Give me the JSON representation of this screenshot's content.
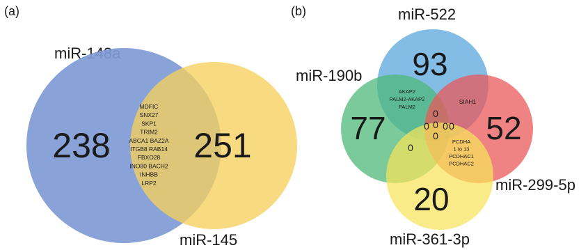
{
  "panel_a": {
    "label": "(a)",
    "set_left": "miR-148a",
    "set_right": "miR-145",
    "count_left": "238",
    "count_right": "251",
    "overlap_genes": [
      "MDFIC",
      "SNX27",
      "SKP1",
      "TRIM2",
      "ABCA1 BAZ2A",
      "ITGB8 RAB14",
      "FBXO28",
      "INO80 BACH2",
      "INHBB",
      "LRP2"
    ],
    "colors": {
      "left": "#7f9bd6",
      "right": "#f6cf5e",
      "overlap": "#c0ae70"
    }
  },
  "panel_b": {
    "label": "(b)",
    "set_top": "miR-522",
    "set_left": "miR-190b",
    "set_right": "miR-299-5p",
    "set_bottom": "miR-361-3p",
    "count_top": "93",
    "count_left": "77",
    "count_right": "52",
    "count_bottom": "20",
    "left_top_genes": [
      "AKAP2",
      "PALM2-AKAP2",
      "PALM2"
    ],
    "top_right_gene": "SIAH1",
    "right_bottom_genes": [
      "PCDHA",
      "1 to 13",
      "PCDHAC1",
      "PCDHAC2"
    ],
    "left_bottom_count": "0",
    "center_zeros": [
      "0",
      "0",
      "0",
      "0",
      "0",
      "0"
    ],
    "colors": {
      "top": "#5aa6dc",
      "left": "#4fb87a",
      "right": "#ea5a5a",
      "bottom": "#f7e45a"
    }
  }
}
